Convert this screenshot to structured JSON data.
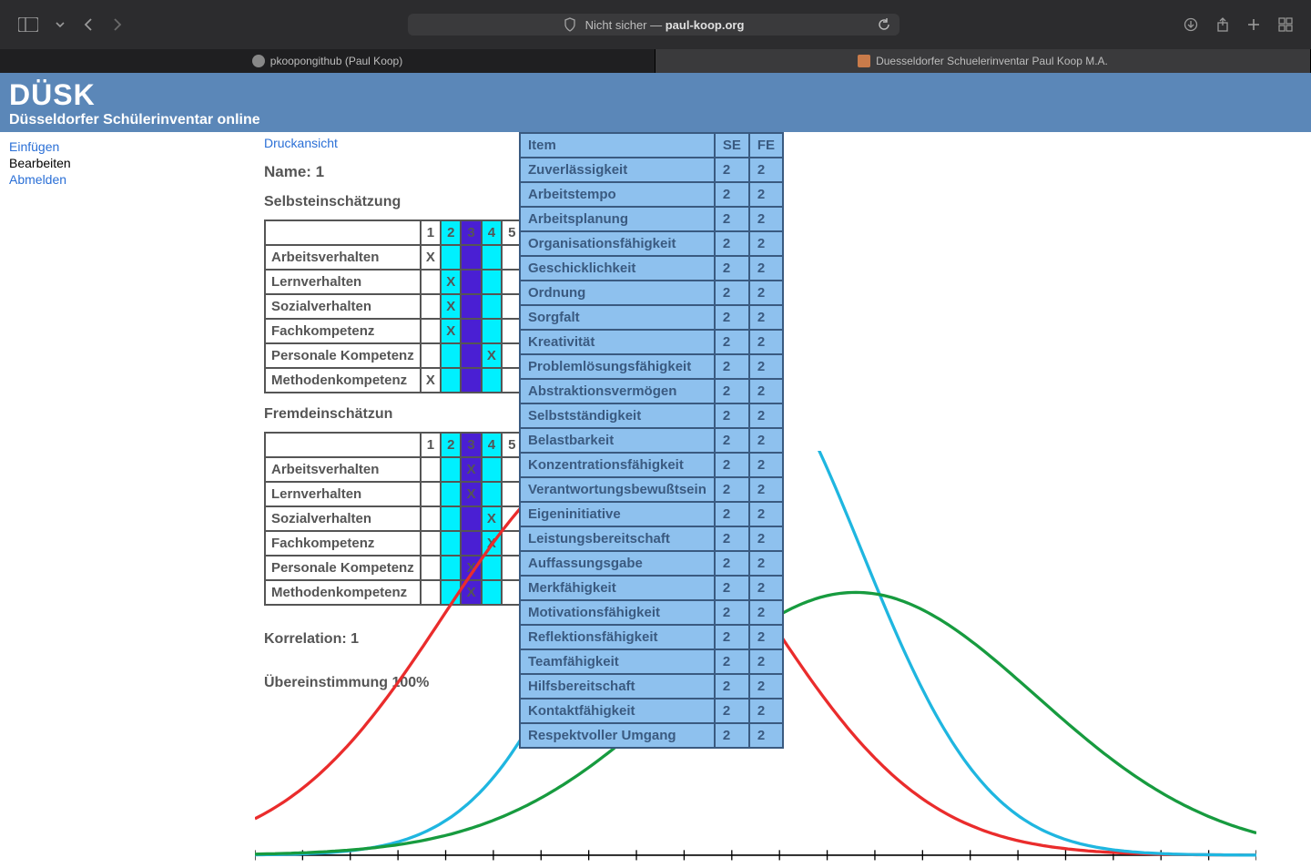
{
  "browser": {
    "security_label": "Nicht sicher — ",
    "url_host": "paul-koop.org",
    "tabs": [
      {
        "label": "pkoopongithub (Paul Koop)"
      },
      {
        "label": "Duesseldorfer Schuelerinventar Paul Koop M.A."
      }
    ]
  },
  "header": {
    "title": "DÜSK",
    "subtitle": "Düsseldorfer Schülerinventar online"
  },
  "sidebar": {
    "items": [
      {
        "label": "Einfügen",
        "link": true
      },
      {
        "label": "Bearbeiten",
        "link": false
      },
      {
        "label": "Abmelden",
        "link": true
      }
    ]
  },
  "main": {
    "print_link": "Druckansicht",
    "name_label": "Name: 1",
    "self_heading": "Selbsteinschätzung",
    "other_heading": "Fremdeinschätzun",
    "korrelation_label": "Korrelation: 1",
    "uebereinstimmung_label": "Übereinstimmung 100%"
  },
  "rating_columns": [
    "1",
    "2",
    "3",
    "4",
    "5"
  ],
  "rating_col_colors": {
    "2": "#00f0ff",
    "3": "#4a1fd3",
    "4": "#00f0ff"
  },
  "self_table": {
    "rows": [
      {
        "label": "Arbeitsverhalten",
        "mark": 1
      },
      {
        "label": "Lernverhalten",
        "mark": 2
      },
      {
        "label": "Sozialverhalten",
        "mark": 2
      },
      {
        "label": "Fachkompetenz",
        "mark": 2
      },
      {
        "label": "Personale Kompetenz",
        "mark": 4
      },
      {
        "label": "Methodenkompetenz",
        "mark": 1
      }
    ]
  },
  "other_table": {
    "rows": [
      {
        "label": "Arbeitsverhalten",
        "mark": 3
      },
      {
        "label": "Lernverhalten",
        "mark": 3
      },
      {
        "label": "Sozialverhalten",
        "mark": 4
      },
      {
        "label": "Fachkompetenz",
        "mark": 4
      },
      {
        "label": "Personale Kompetenz",
        "mark": 3
      },
      {
        "label": "Methodenkompetenz",
        "mark": 3
      }
    ]
  },
  "item_table": {
    "headers": [
      "Item",
      "SE",
      "FE"
    ],
    "rows": [
      [
        "Zuverlässigkeit",
        "2",
        "2"
      ],
      [
        "Arbeitstempo",
        "2",
        "2"
      ],
      [
        "Arbeitsplanung",
        "2",
        "2"
      ],
      [
        "Organisationsfähigkeit",
        "2",
        "2"
      ],
      [
        "Geschicklichkeit",
        "2",
        "2"
      ],
      [
        "Ordnung",
        "2",
        "2"
      ],
      [
        "Sorgfalt",
        "2",
        "2"
      ],
      [
        "Kreativität",
        "2",
        "2"
      ],
      [
        "Problemlösungsfähigkeit",
        "2",
        "2"
      ],
      [
        "Abstraktionsvermögen",
        "2",
        "2"
      ],
      [
        "Selbstständigkeit",
        "2",
        "2"
      ],
      [
        "Belastbarkeit",
        "2",
        "2"
      ],
      [
        "Konzentrationsfähigkeit",
        "2",
        "2"
      ],
      [
        "Verantwortungsbewußtsein",
        "2",
        "2"
      ],
      [
        "Eigeninitiative",
        "2",
        "2"
      ],
      [
        "Leistungsbereitschaft",
        "2",
        "2"
      ],
      [
        "Auffassungsgabe",
        "2",
        "2"
      ],
      [
        "Merkfähigkeit",
        "2",
        "2"
      ],
      [
        "Motivationsfähigkeit",
        "2",
        "2"
      ],
      [
        "Reflektionsfähigkeit",
        "2",
        "2"
      ],
      [
        "Teamfähigkeit",
        "2",
        "2"
      ],
      [
        "Hilfsbereitschaft",
        "2",
        "2"
      ],
      [
        "Kontaktfähigkeit",
        "2",
        "2"
      ],
      [
        "Respektvoller Umgang",
        "2",
        "2"
      ]
    ]
  },
  "chart": {
    "type": "line-bell-curves",
    "background": "#ffffff",
    "axis_color": "#000000",
    "x_range": [
      0,
      1000
    ],
    "y_range": [
      0,
      400
    ],
    "tick_count_x": 21,
    "curves": [
      {
        "name": "red",
        "color": "#ea2c2c",
        "stroke_width": 3,
        "mu": 350,
        "sigma": 160,
        "amp": 395
      },
      {
        "name": "cyan",
        "color": "#1fb6e0",
        "stroke_width": 3,
        "mu": 480,
        "sigma": 125,
        "amp": 500
      },
      {
        "name": "green",
        "color": "#179b3f",
        "stroke_width": 3,
        "mu": 600,
        "sigma": 180,
        "amp": 260
      }
    ]
  }
}
